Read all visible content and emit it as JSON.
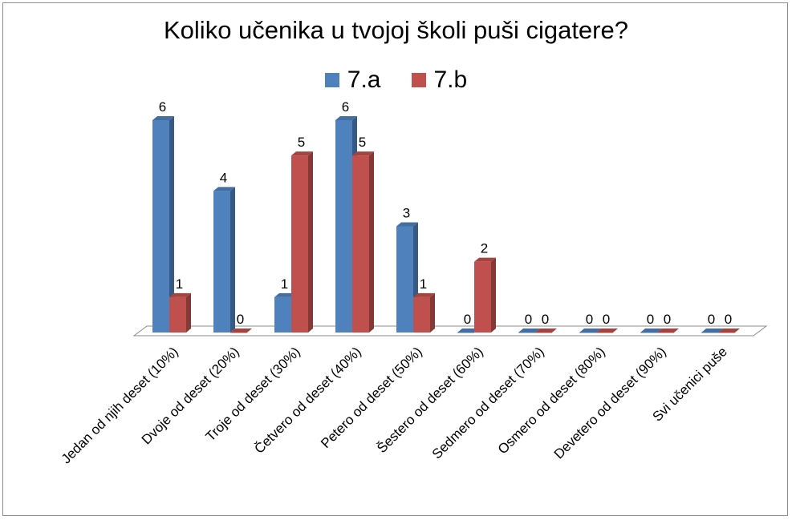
{
  "chart_data": {
    "type": "bar",
    "title": "Koliko učenika  u tvojoj školi puši cigatere?",
    "categories": [
      "Jedan od njih deset (10%)",
      "Dvoje od deset (20%)",
      "Troje od deset (30%)",
      "Četvero od deset (40%)",
      "Petero od deset (50%)",
      "Šestero od deset (60%)",
      "Sedmero od deset (70%)",
      "Osmero od deset (80%)",
      "Devetero od deset (90%)",
      "Svi učenici puše"
    ],
    "series": [
      {
        "name": "7.a",
        "color": "#4f81bd",
        "values": [
          6,
          4,
          1,
          6,
          3,
          0,
          0,
          0,
          0,
          0
        ]
      },
      {
        "name": "7.b",
        "color": "#c0504d",
        "values": [
          1,
          0,
          5,
          5,
          1,
          2,
          0,
          0,
          0,
          0
        ]
      }
    ],
    "ylim": [
      0,
      6
    ],
    "grid": false,
    "legend_position": "top",
    "data_labels": true
  }
}
